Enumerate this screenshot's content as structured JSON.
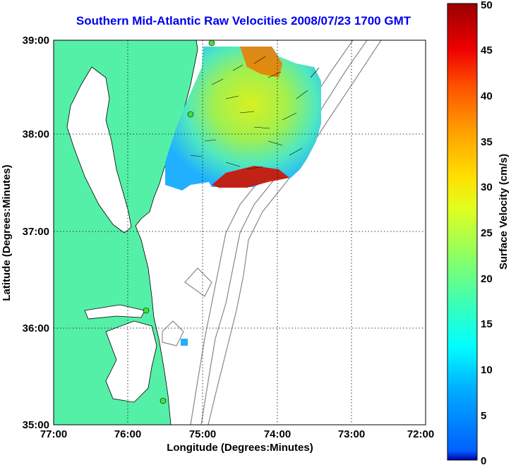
{
  "title": "Southern Mid-Atlantic Raw Velocities 2008/07/23 1700 GMT",
  "map": {
    "x_axis_label": "Longitude (Degrees:Minutes)",
    "y_axis_label": "Latitude (Degrees:Minutes)",
    "x_ticks": [
      "77:00",
      "76:00",
      "75:00",
      "74:00",
      "73:00",
      "72:00"
    ],
    "y_ticks": [
      "39:00",
      "38:00",
      "37:00",
      "36:00",
      "35:00"
    ],
    "lon_range": [
      -77,
      -72
    ],
    "lat_range": [
      35,
      39
    ],
    "land_color": "#55f0a8",
    "grid": "dotted"
  },
  "colorbar": {
    "label": "Surface Velocity (cm/s)",
    "ticks": [
      "0",
      "5",
      "10",
      "15",
      "20",
      "25",
      "30",
      "35",
      "40",
      "45",
      "50"
    ],
    "range": [
      0,
      50
    ],
    "colormap": "jet"
  }
}
